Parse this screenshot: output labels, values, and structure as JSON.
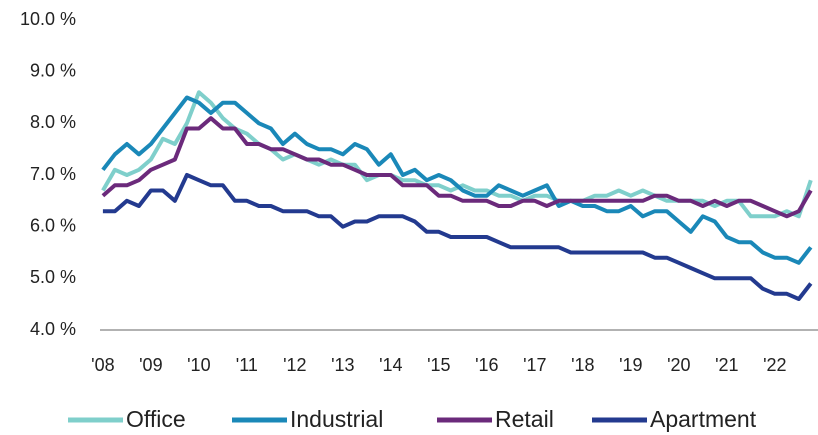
{
  "chart_data": {
    "type": "line",
    "x": [
      2008,
      2008.25,
      2008.5,
      2008.75,
      2009,
      2009.25,
      2009.5,
      2009.75,
      2010,
      2010.25,
      2010.5,
      2010.75,
      2011,
      2011.25,
      2011.5,
      2011.75,
      2012,
      2012.25,
      2012.5,
      2012.75,
      2013,
      2013.25,
      2013.5,
      2013.75,
      2014,
      2014.25,
      2014.5,
      2014.75,
      2015,
      2015.25,
      2015.5,
      2015.75,
      2016,
      2016.25,
      2016.5,
      2016.75,
      2017,
      2017.25,
      2017.5,
      2017.75,
      2018,
      2018.25,
      2018.5,
      2018.75,
      2019,
      2019.25,
      2019.5,
      2019.75,
      2020,
      2020.25,
      2020.5,
      2020.75,
      2021,
      2021.25,
      2021.5,
      2021.75,
      2022,
      2022.25,
      2022.5,
      2022.75
    ],
    "series": [
      {
        "name": "Office",
        "color": "#7fcfcb",
        "values": [
          6.7,
          7.1,
          7.0,
          7.1,
          7.3,
          7.7,
          7.6,
          8.0,
          8.6,
          8.4,
          8.1,
          7.9,
          7.8,
          7.6,
          7.5,
          7.3,
          7.4,
          7.3,
          7.2,
          7.3,
          7.2,
          7.2,
          6.9,
          7.0,
          7.0,
          6.9,
          6.9,
          6.8,
          6.8,
          6.7,
          6.8,
          6.7,
          6.7,
          6.6,
          6.6,
          6.5,
          6.6,
          6.6,
          6.5,
          6.5,
          6.5,
          6.6,
          6.6,
          6.7,
          6.6,
          6.7,
          6.6,
          6.5,
          6.5,
          6.5,
          6.5,
          6.4,
          6.5,
          6.5,
          6.2,
          6.2,
          6.2,
          6.3,
          6.2,
          6.9
        ]
      },
      {
        "name": "Industrial",
        "color": "#1a88b8",
        "values": [
          7.1,
          7.4,
          7.6,
          7.4,
          7.6,
          7.9,
          8.2,
          8.5,
          8.4,
          8.2,
          8.4,
          8.4,
          8.2,
          8.0,
          7.9,
          7.6,
          7.8,
          7.6,
          7.5,
          7.5,
          7.4,
          7.6,
          7.5,
          7.2,
          7.4,
          7.0,
          7.1,
          6.9,
          7.0,
          6.9,
          6.7,
          6.6,
          6.6,
          6.8,
          6.7,
          6.6,
          6.7,
          6.8,
          6.4,
          6.5,
          6.4,
          6.4,
          6.3,
          6.3,
          6.4,
          6.2,
          6.3,
          6.3,
          6.1,
          5.9,
          6.2,
          6.1,
          5.8,
          5.7,
          5.7,
          5.5,
          5.4,
          5.4,
          5.3,
          5.6
        ]
      },
      {
        "name": "Retail",
        "color": "#6b2a7b",
        "values": [
          6.6,
          6.8,
          6.8,
          6.9,
          7.1,
          7.2,
          7.3,
          7.9,
          7.9,
          8.1,
          7.9,
          7.9,
          7.6,
          7.6,
          7.5,
          7.5,
          7.4,
          7.3,
          7.3,
          7.2,
          7.2,
          7.1,
          7.0,
          7.0,
          7.0,
          6.8,
          6.8,
          6.8,
          6.6,
          6.6,
          6.5,
          6.5,
          6.5,
          6.4,
          6.4,
          6.5,
          6.5,
          6.4,
          6.5,
          6.5,
          6.5,
          6.5,
          6.5,
          6.5,
          6.5,
          6.5,
          6.6,
          6.6,
          6.5,
          6.5,
          6.4,
          6.5,
          6.4,
          6.5,
          6.5,
          6.4,
          6.3,
          6.2,
          6.3,
          6.7
        ]
      },
      {
        "name": "Apartment",
        "color": "#233a8f",
        "values": [
          6.3,
          6.3,
          6.5,
          6.4,
          6.7,
          6.7,
          6.5,
          7.0,
          6.9,
          6.8,
          6.8,
          6.5,
          6.5,
          6.4,
          6.4,
          6.3,
          6.3,
          6.3,
          6.2,
          6.2,
          6.0,
          6.1,
          6.1,
          6.2,
          6.2,
          6.2,
          6.1,
          5.9,
          5.9,
          5.8,
          5.8,
          5.8,
          5.8,
          5.7,
          5.6,
          5.6,
          5.6,
          5.6,
          5.6,
          5.5,
          5.5,
          5.5,
          5.5,
          5.5,
          5.5,
          5.5,
          5.4,
          5.4,
          5.3,
          5.2,
          5.1,
          5.0,
          5.0,
          5.0,
          5.0,
          4.8,
          4.7,
          4.7,
          4.6,
          4.9
        ]
      }
    ],
    "xlim": [
      2007.94,
      2022.9
    ],
    "xticks": [
      {
        "value": 2008,
        "label": "'08"
      },
      {
        "value": 2009,
        "label": "'09"
      },
      {
        "value": 2010,
        "label": "'10"
      },
      {
        "value": 2011,
        "label": "'11"
      },
      {
        "value": 2012,
        "label": "'12"
      },
      {
        "value": 2013,
        "label": "'13"
      },
      {
        "value": 2014,
        "label": "'14"
      },
      {
        "value": 2015,
        "label": "'15"
      },
      {
        "value": 2016,
        "label": "'16"
      },
      {
        "value": 2017,
        "label": "'17"
      },
      {
        "value": 2018,
        "label": "'18"
      },
      {
        "value": 2019,
        "label": "'19"
      },
      {
        "value": 2020,
        "label": "'20"
      },
      {
        "value": 2021,
        "label": "'21"
      },
      {
        "value": 2022,
        "label": "'22"
      }
    ],
    "ylim": [
      4,
      10
    ],
    "yticks": [
      {
        "value": 4,
        "label": "4.0 %"
      },
      {
        "value": 5,
        "label": "5.0 %"
      },
      {
        "value": 6,
        "label": "6.0 %"
      },
      {
        "value": 7,
        "label": "7.0 %"
      },
      {
        "value": 8,
        "label": "8.0 %"
      },
      {
        "value": 9,
        "label": "9.0 %"
      },
      {
        "value": 10,
        "label": "10.0 %"
      }
    ],
    "legend": "bottom"
  }
}
